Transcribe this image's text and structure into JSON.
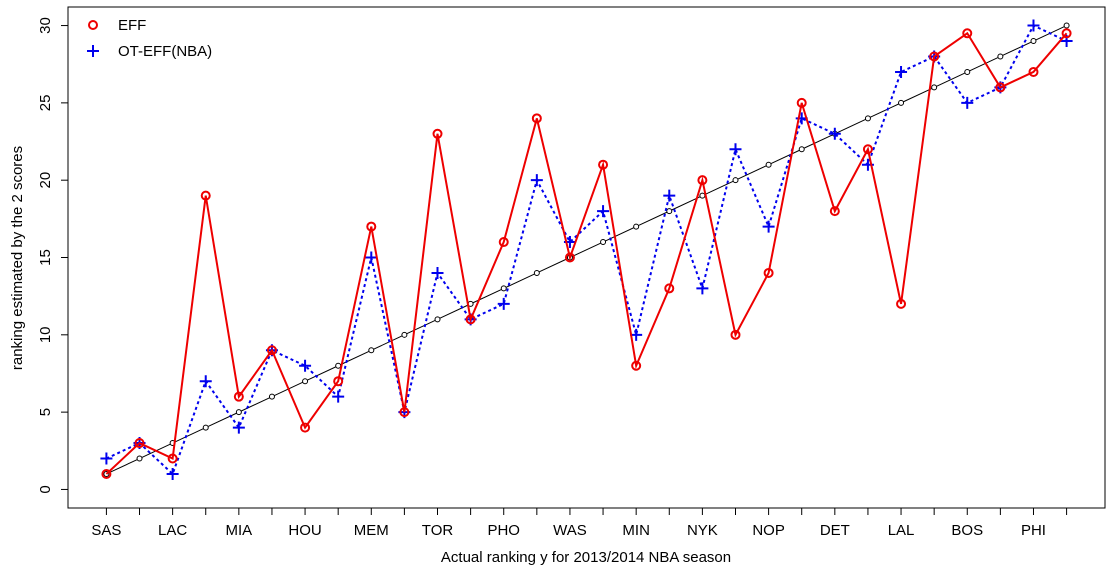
{
  "chart_data": {
    "type": "line",
    "xlabel": "Actual ranking y for 2013/2014 NBA season",
    "ylabel": "ranking estimated by the 2 scores",
    "categories": [
      "SAS",
      null,
      "LAC",
      null,
      "MIA",
      null,
      "HOU",
      null,
      "MEM",
      null,
      "TOR",
      null,
      "PHO",
      null,
      "WAS",
      null,
      "MIN",
      null,
      "NYK",
      null,
      "NOP",
      null,
      "DET",
      null,
      "LAL",
      null,
      "BOS",
      null,
      "PHI",
      null
    ],
    "series": [
      {
        "name": "EFF",
        "color": "#ee0000",
        "marker": "circle",
        "dash": "solid",
        "values": [
          1,
          3,
          2,
          19,
          6,
          9,
          4,
          7,
          17,
          5,
          23,
          11,
          16,
          24,
          15,
          21,
          8,
          13,
          20,
          10,
          14,
          25,
          18,
          22,
          12,
          28,
          29.5,
          26,
          27,
          29.5
        ]
      },
      {
        "name": "OT-EFF(NBA)",
        "color": "#0000ee",
        "marker": "plus",
        "dash": "dotted",
        "values": [
          2,
          3,
          1,
          7,
          4,
          9,
          8,
          6,
          15,
          5,
          14,
          11,
          12,
          20,
          16,
          18,
          10,
          19,
          13,
          22,
          17,
          24,
          23,
          21,
          27,
          28,
          25,
          26,
          30,
          29
        ]
      },
      {
        "color": "#000000",
        "marker": "small-circle",
        "dash": "solid",
        "values": [
          1,
          2,
          3,
          4,
          5,
          6,
          7,
          8,
          9,
          10,
          11,
          12,
          13,
          14,
          15,
          16,
          17,
          18,
          19,
          20,
          21,
          22,
          23,
          24,
          25,
          26,
          27,
          28,
          29,
          30
        ]
      }
    ],
    "ylim": [
      -1.2,
      31.2
    ],
    "yticks": [
      0,
      5,
      10,
      15,
      20,
      25,
      30
    ],
    "grid": false,
    "legend": "top-left"
  }
}
